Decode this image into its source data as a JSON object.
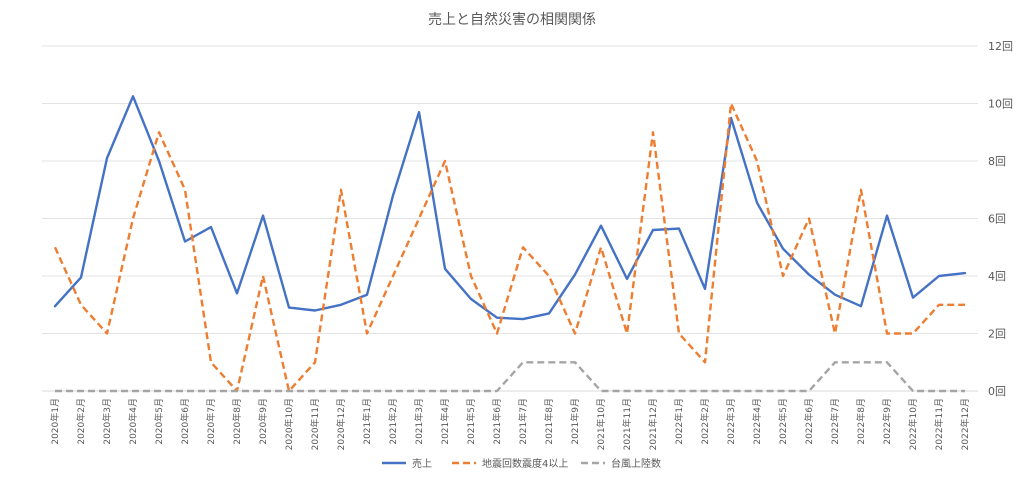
{
  "chart_data": {
    "type": "line",
    "title": "売上と自然災害の相関関係",
    "xlabel": "",
    "ylabel": "",
    "ylim": [
      0,
      12
    ],
    "y_ticks": [
      "0回",
      "2回",
      "4回",
      "6回",
      "8回",
      "10回",
      "12回"
    ],
    "grid": true,
    "legend_position": "bottom",
    "categories": [
      "2020年1月",
      "2020年2月",
      "2020年3月",
      "2020年4月",
      "2020年5月",
      "2020年6月",
      "2020年7月",
      "2020年8月",
      "2020年9月",
      "2020年10月",
      "2020年11月",
      "2020年12月",
      "2021年1月",
      "2021年2月",
      "2021年3月",
      "2021年4月",
      "2021年5月",
      "2021年6月",
      "2021年7月",
      "2021年8月",
      "2021年9月",
      "2021年10月",
      "2021年11月",
      "2021年12月",
      "2022年1月",
      "2022年2月",
      "2022年3月",
      "2022年4月",
      "2022年5月",
      "2022年6月",
      "2022年7月",
      "2022年8月",
      "2022年9月",
      "2022年10月",
      "2022年11月",
      "2022年12月"
    ],
    "series": [
      {
        "name": "売上",
        "color": "#4472C4",
        "dash": "solid",
        "values": [
          2.95,
          3.95,
          8.1,
          10.25,
          8.0,
          5.2,
          5.7,
          3.4,
          6.1,
          2.9,
          2.8,
          3.0,
          3.35,
          6.8,
          9.7,
          4.25,
          3.2,
          2.55,
          2.5,
          2.7,
          4.05,
          5.75,
          3.9,
          5.6,
          5.65,
          3.55,
          9.5,
          6.55,
          4.95,
          4.05,
          3.35,
          2.95,
          6.1,
          3.25,
          4.0,
          4.1
        ]
      },
      {
        "name": "地震回数震度4以上",
        "color": "#ED7D31",
        "dash": "dashed",
        "values": [
          5,
          3,
          2,
          6,
          9,
          7,
          1,
          0,
          4,
          0,
          1,
          7,
          2,
          4,
          6,
          8,
          4,
          2,
          5,
          4,
          2,
          5,
          2,
          9,
          2,
          1,
          10,
          8,
          4,
          6,
          2,
          7,
          2,
          2,
          3,
          3
        ]
      },
      {
        "name": "台風上陸数",
        "color": "#A5A5A5",
        "dash": "dashed",
        "values": [
          0,
          0,
          0,
          0,
          0,
          0,
          0,
          0,
          0,
          0,
          0,
          0,
          0,
          0,
          0,
          0,
          0,
          0,
          1,
          1,
          1,
          0,
          0,
          0,
          0,
          0,
          0,
          0,
          0,
          0,
          1,
          1,
          1,
          0,
          0,
          0
        ]
      }
    ]
  }
}
